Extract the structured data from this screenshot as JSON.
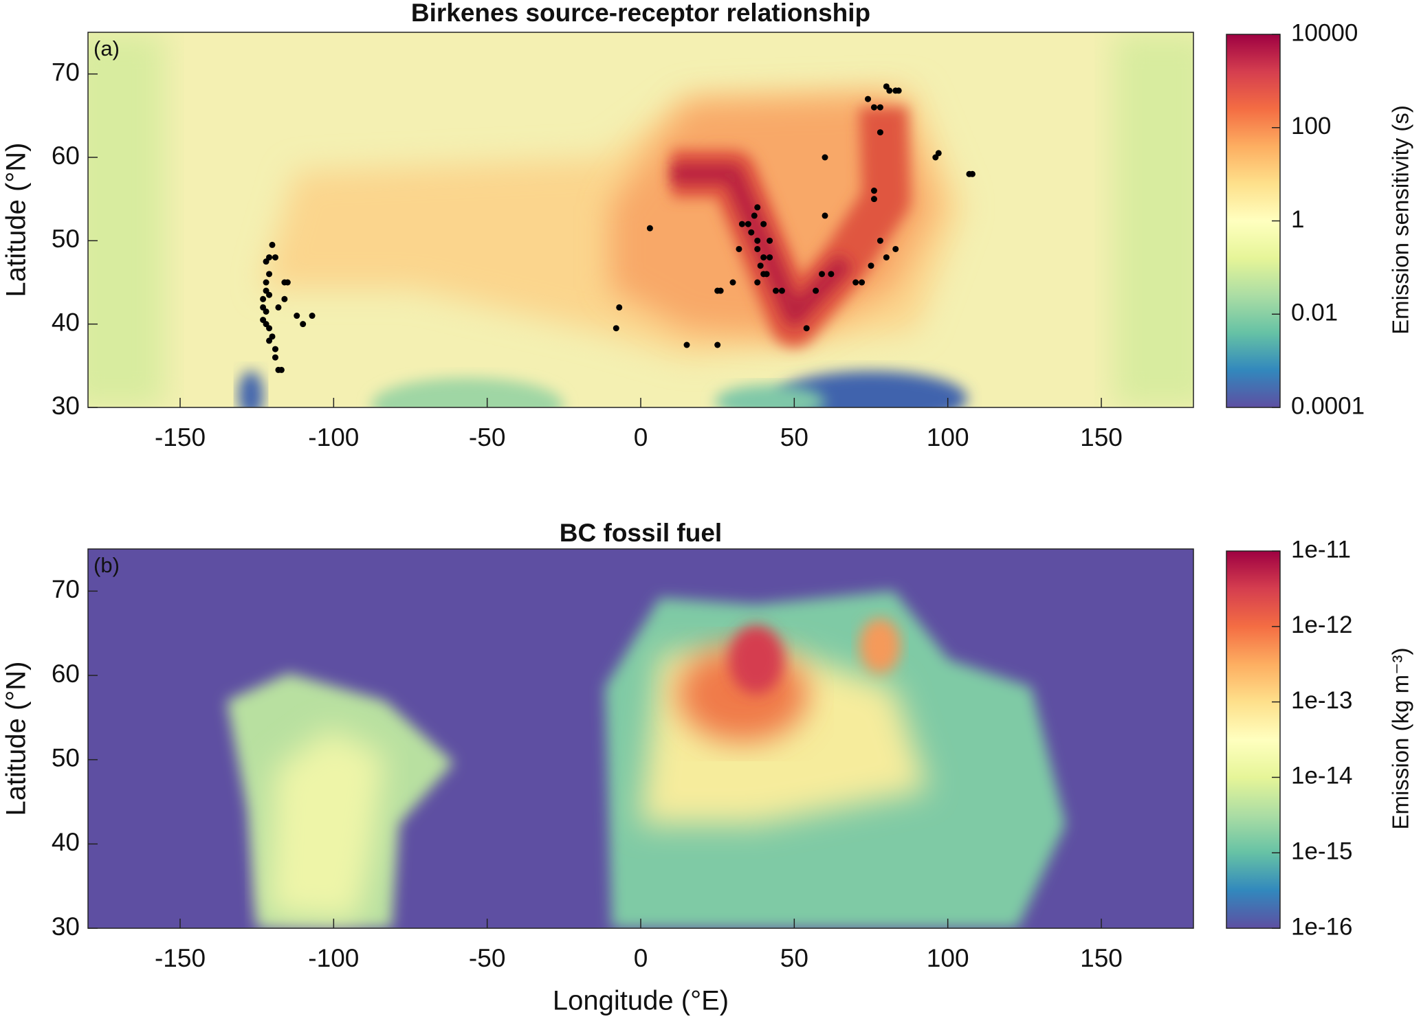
{
  "chart_data": [
    {
      "type": "scatter",
      "title": "Birkenes source-receptor relationship",
      "panel_label": "(a)",
      "ylabel": "Latitude (°N)",
      "xlim": [
        -180,
        180
      ],
      "ylim": [
        30,
        75
      ],
      "xticks": [
        -150,
        -100,
        -50,
        0,
        50,
        100,
        150
      ],
      "yticks": [
        30,
        40,
        50,
        60,
        70
      ],
      "point_color": "#000000",
      "x": [
        -122,
        -121,
        -120,
        -119,
        -121,
        -122,
        -122,
        -121,
        -123,
        -123,
        -122,
        -123,
        -122,
        -121,
        -120,
        -121,
        -119,
        -119,
        -118,
        -117,
        -116,
        -115,
        -116,
        -118,
        -112,
        -110,
        -107,
        3,
        -7,
        -8,
        15,
        25,
        40,
        38,
        39,
        41,
        42,
        38,
        36,
        35,
        33,
        37,
        38,
        40,
        42,
        40,
        44,
        46,
        38,
        32,
        30,
        25,
        26,
        54,
        57,
        59,
        62,
        70,
        72,
        75,
        80,
        78,
        83,
        60,
        76,
        76,
        60,
        74,
        76,
        78,
        80,
        81,
        83,
        84,
        78,
        96,
        97,
        107,
        108
      ],
      "y": [
        47.5,
        48,
        49.5,
        48,
        46,
        45,
        44,
        43.5,
        43,
        42,
        41.5,
        40.5,
        40,
        39.5,
        38.5,
        38,
        37,
        36,
        34.5,
        34.5,
        45,
        45,
        43,
        42,
        41,
        40,
        41,
        51.5,
        42,
        39.5,
        37.5,
        37.5,
        48,
        49,
        47,
        46,
        48,
        50,
        51,
        52,
        52,
        53,
        54,
        52,
        50,
        46,
        44,
        44,
        45,
        49,
        45,
        44,
        44,
        39.5,
        44,
        46,
        46,
        45,
        45,
        47,
        48,
        50,
        49,
        53,
        55,
        56,
        60,
        67,
        66,
        66,
        68.5,
        68,
        68,
        68,
        63,
        60,
        60.5,
        58,
        58
      ],
      "colorbar": {
        "label": "Emission sensitivity (s)",
        "lim": [
          0.0001,
          10000
        ],
        "ticks": [
          0.0001,
          0.01,
          1,
          100,
          10000
        ],
        "log": true
      }
    },
    {
      "type": "heatmap",
      "title": "BC fossil fuel",
      "panel_label": "(b)",
      "xlabel": "Longitude (°E)",
      "ylabel": "Latitude (°N)",
      "xlim": [
        -180,
        180
      ],
      "ylim": [
        30,
        75
      ],
      "xticks": [
        -150,
        -100,
        -50,
        0,
        50,
        100,
        150
      ],
      "yticks": [
        30,
        40,
        50,
        60,
        70
      ],
      "colorbar": {
        "label": "Emission (kg m⁻³)",
        "lim": [
          1e-16,
          1e-11
        ],
        "ticks": [
          1e-16,
          1e-15,
          1e-14,
          1e-13,
          1e-12,
          1e-11
        ],
        "log": true
      }
    }
  ]
}
